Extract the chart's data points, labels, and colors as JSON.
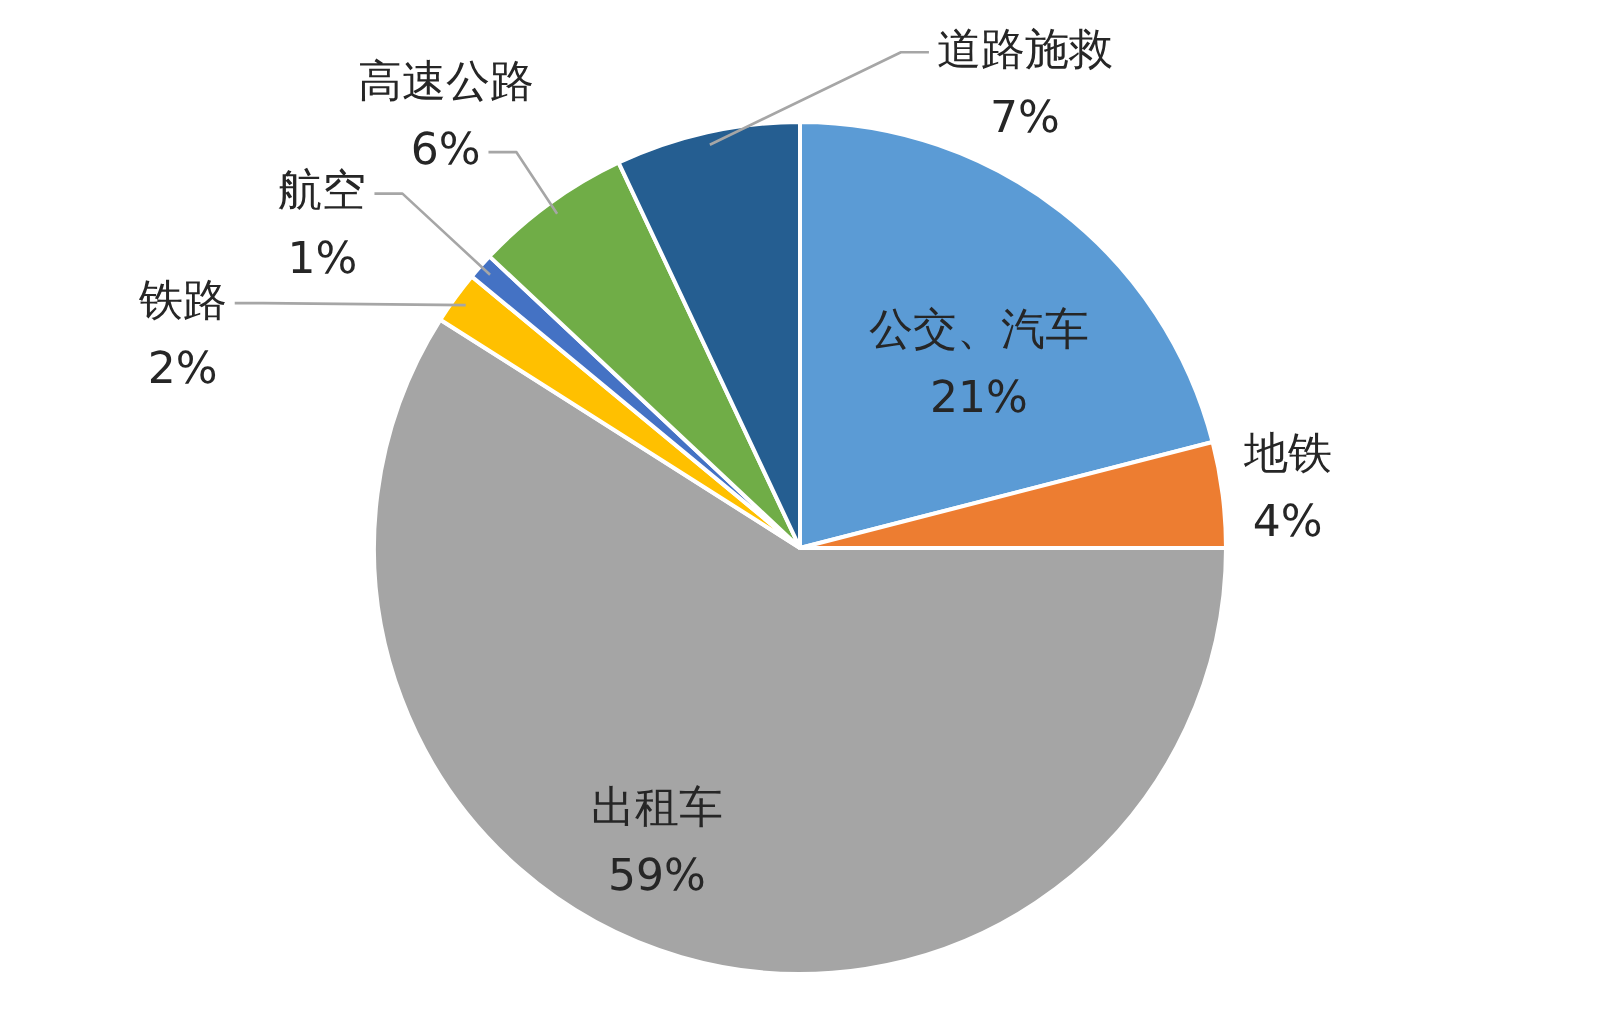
{
  "chart_data": {
    "type": "pie",
    "categories": [
      "公交、汽车",
      "地铁",
      "出租车",
      "铁路",
      "航空",
      "高速公路",
      "道路施救"
    ],
    "values": [
      21,
      4,
      59,
      2,
      1,
      6,
      7
    ],
    "colors": [
      "#5b9bd5",
      "#ed7d31",
      "#a5a5a5",
      "#ffc000",
      "#4472c4",
      "#70ad47",
      "#255e91"
    ],
    "value_labels": [
      "21%",
      "4%",
      "59%",
      "2%",
      "1%",
      "6%",
      "7%"
    ],
    "legend": false
  }
}
